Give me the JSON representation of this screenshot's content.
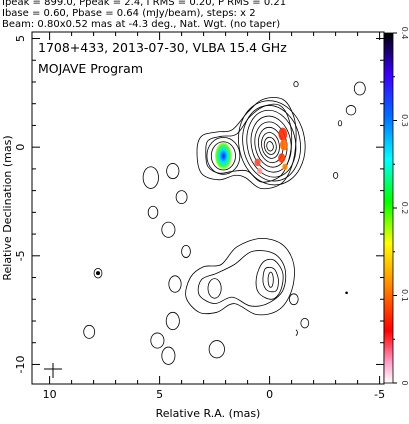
{
  "header": {
    "line1": "Ipeak = 899.0, Ppeak = 2.4, I RMS = 0.20, P RMS = 0.21",
    "line2": "Ibase = 0.60, Pbase = 0.64 (mJy/beam), steps: x 2",
    "line3": "Beam: 0.80x0.52 mas at -4.3 deg., Nat. Wgt. (no taper)"
  },
  "chart_data": {
    "type": "contour",
    "title": "1708+433, 2013-07-30, VLBA 15.4 GHz",
    "subtitle": "MOJAVE Program",
    "xlabel": "Relative R.A. (mas)",
    "ylabel": "Relative Declination (mas)",
    "xlim": [
      10.8,
      -5.2
    ],
    "ylim": [
      -10.9,
      5.3
    ],
    "x_ticks": [
      10,
      5,
      0,
      -5
    ],
    "y_ticks": [
      5,
      0,
      -5,
      -10
    ],
    "x_tick_labels": [
      "10",
      "5",
      "0",
      "-5"
    ],
    "y_tick_labels": [
      "5",
      "0",
      "-5",
      "-10"
    ],
    "colorbar": {
      "range": [
        0,
        0.4
      ],
      "ticks": [
        0,
        0.1,
        0.2,
        0.3,
        0.4
      ],
      "tick_labels": [
        "0",
        "0.1",
        "0.2",
        "0.3",
        "0.4"
      ]
    },
    "core": {
      "x": 0.0,
      "y": 0.0,
      "levels": 9
    },
    "features": [
      {
        "x": 2.1,
        "y": -0.4,
        "desc": "inner jet knot with polarized emission"
      },
      {
        "x": 0.8,
        "y": -6.1,
        "desc": "outer lobe"
      },
      {
        "x": 2.5,
        "y": -6.5,
        "desc": "outer lobe tail"
      }
    ],
    "beam": {
      "major_mas": 0.8,
      "minor_mas": 0.52,
      "pa_deg": -4.3
    }
  }
}
